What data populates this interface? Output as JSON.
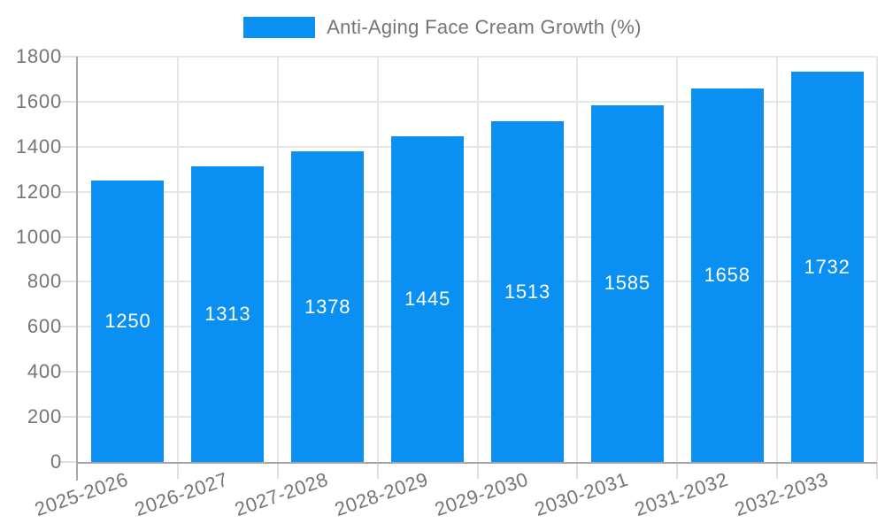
{
  "chart_data": {
    "type": "bar",
    "title": "Anti-Aging Face Cream Growth (%)",
    "categories": [
      "2025-2026",
      "2026-2027",
      "2027-2028",
      "2028-2029",
      "2029-2030",
      "2030-2031",
      "2031-2032",
      "2032-2033"
    ],
    "values": [
      1250,
      1313,
      1378,
      1445,
      1513,
      1585,
      1658,
      1732
    ],
    "xlabel": "",
    "ylabel": "",
    "ylim": [
      0,
      1800
    ],
    "ytick_step": 200,
    "ytick_labels": [
      "0",
      "200",
      "400",
      "600",
      "800",
      "1000",
      "1200",
      "1400",
      "1600",
      "1800"
    ],
    "grid": true,
    "legend_position": "top-center",
    "bar_label_position": "inside-center",
    "series_color": "#0a90f2"
  },
  "legend": {
    "label": "Anti-Aging Face Cream Growth (%)",
    "swatch_color": "#0a90f2"
  },
  "colors": {
    "bar": "#0a90f2",
    "axis_text": "#757575",
    "value_label": "#ffffff",
    "gridline": "#e6e6e6",
    "boundary_tick": "#e0e0e0",
    "axis_line": "#a6a6a6",
    "background": "#ffffff"
  }
}
